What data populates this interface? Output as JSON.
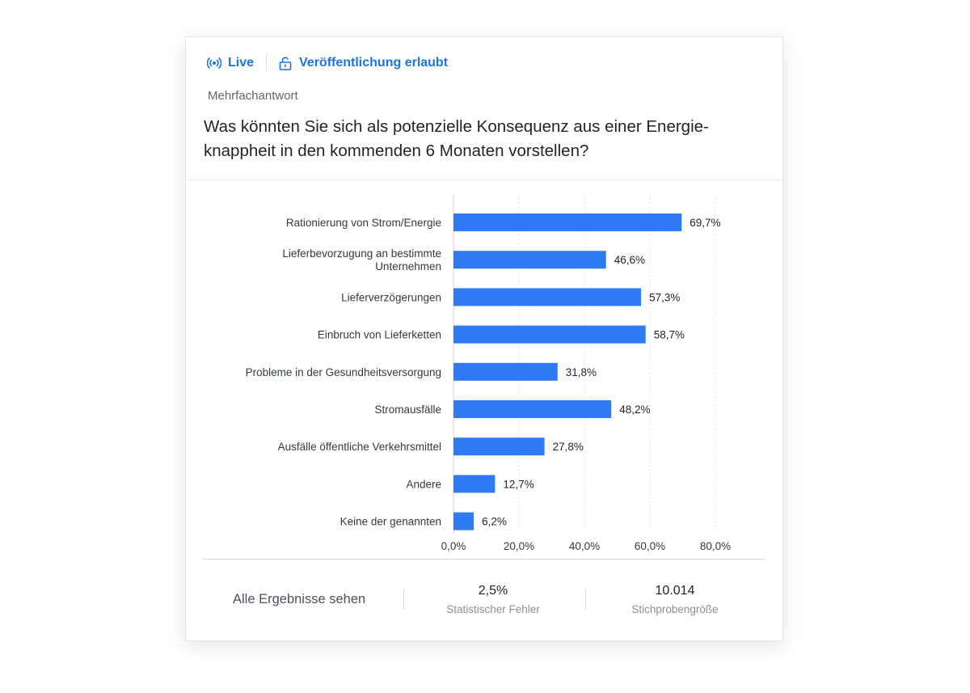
{
  "header": {
    "live_label": "Live",
    "publish_label": "Veröffentlichung erlaubt",
    "question_type": "Mehrfachantwort",
    "question_line1": "Was könnten Sie sich als potenzielle Konsequenz aus einer Energie-",
    "question_line2": "knappheit in den kommenden 6 Monaten vorstellen?"
  },
  "colors": {
    "bar": "#2f7bf5",
    "accent": "#1a73e8"
  },
  "chart_data": {
    "type": "bar",
    "orientation": "horizontal",
    "categories": [
      [
        "Rationierung von Strom/Energie"
      ],
      [
        "Lieferbevorzugung an bestimmte",
        "Unternehmen"
      ],
      [
        "Lieferverzögerungen"
      ],
      [
        "Einbruch von Lieferketten"
      ],
      [
        "Probleme in der Gesundheitsversorgung"
      ],
      [
        "Stromausfälle"
      ],
      [
        "Ausfälle öffentliche Verkehrsmittel"
      ],
      [
        "Andere"
      ],
      [
        "Keine der genannten"
      ]
    ],
    "values": [
      69.7,
      46.6,
      57.3,
      58.7,
      31.8,
      48.2,
      27.8,
      12.7,
      6.2
    ],
    "value_labels": [
      "69,7%",
      "46,6%",
      "57,3%",
      "58,7%",
      "31,8%",
      "48,2%",
      "27,8%",
      "12,7%",
      "6,2%"
    ],
    "ticks": [
      0,
      20,
      40,
      60,
      80
    ],
    "tick_labels": [
      "0,0%",
      "20,0%",
      "40,0%",
      "60,0%",
      "80,0%"
    ],
    "xlim": [
      0,
      80
    ],
    "grid": true
  },
  "footer": {
    "see_all_label": "Alle Ergebnisse sehen",
    "error_value": "2,5%",
    "error_label": "Statistischer Fehler",
    "sample_value": "10.014",
    "sample_label": "Stichprobengröße"
  }
}
